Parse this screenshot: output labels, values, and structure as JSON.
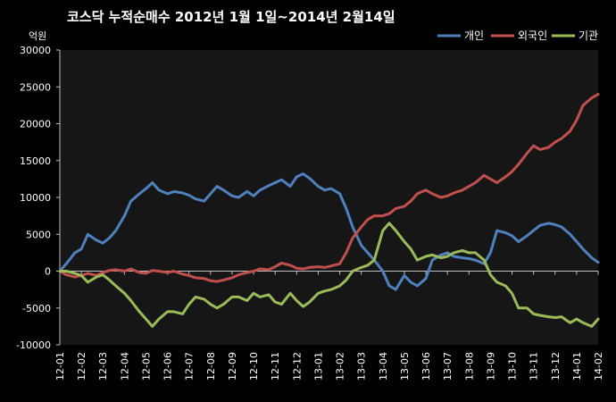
{
  "chart_data": {
    "type": "line",
    "title": "코스닥  누적순매수 2012년 1월 1일~2014년 2월14일",
    "unit": "억원",
    "ylim": [
      -10000,
      30000
    ],
    "yticks": [
      -10000,
      -5000,
      0,
      5000,
      10000,
      15000,
      20000,
      25000,
      30000
    ],
    "categories": [
      "12-01",
      "12-02",
      "12-03",
      "12-04",
      "12-05",
      "12-06",
      "12-07",
      "12-08",
      "12-09",
      "12-10",
      "12-11",
      "12-12",
      "13-01",
      "13-02",
      "13-03",
      "13-04",
      "13-05",
      "13-06",
      "13-07",
      "13-08",
      "13-09",
      "13-10",
      "13-11",
      "13-12",
      "14-01",
      "14-02"
    ],
    "grid": false,
    "legend_position": "top-right",
    "series": [
      {
        "name": "개인",
        "color": "#4f81bd",
        "points": [
          [
            0,
            0
          ],
          [
            0.3,
            1000
          ],
          [
            0.7,
            2500
          ],
          [
            1.0,
            3000
          ],
          [
            1.3,
            5000
          ],
          [
            1.7,
            4200
          ],
          [
            2.0,
            3800
          ],
          [
            2.3,
            4500
          ],
          [
            2.6,
            5500
          ],
          [
            3.0,
            7500
          ],
          [
            3.3,
            9500
          ],
          [
            3.7,
            10500
          ],
          [
            4.0,
            11200
          ],
          [
            4.3,
            12000
          ],
          [
            4.6,
            11000
          ],
          [
            5.0,
            10500
          ],
          [
            5.3,
            10800
          ],
          [
            5.7,
            10600
          ],
          [
            6.0,
            10300
          ],
          [
            6.3,
            9800
          ],
          [
            6.7,
            9500
          ],
          [
            7.0,
            10500
          ],
          [
            7.3,
            11500
          ],
          [
            7.6,
            11000
          ],
          [
            8.0,
            10200
          ],
          [
            8.3,
            10000
          ],
          [
            8.7,
            10800
          ],
          [
            9.0,
            10200
          ],
          [
            9.3,
            11000
          ],
          [
            9.7,
            11600
          ],
          [
            10.0,
            12000
          ],
          [
            10.3,
            12400
          ],
          [
            10.7,
            11500
          ],
          [
            11.0,
            12800
          ],
          [
            11.3,
            13200
          ],
          [
            11.6,
            12600
          ],
          [
            12.0,
            11500
          ],
          [
            12.3,
            11000
          ],
          [
            12.6,
            11200
          ],
          [
            13.0,
            10500
          ],
          [
            13.3,
            8500
          ],
          [
            13.6,
            6000
          ],
          [
            14.0,
            3500
          ],
          [
            14.3,
            2500
          ],
          [
            14.6,
            1500
          ],
          [
            15.0,
            0
          ],
          [
            15.3,
            -2000
          ],
          [
            15.6,
            -2500
          ],
          [
            16.0,
            -600
          ],
          [
            16.3,
            -1500
          ],
          [
            16.6,
            -2000
          ],
          [
            17.0,
            -1000
          ],
          [
            17.3,
            1500
          ],
          [
            17.7,
            2200
          ],
          [
            18.0,
            2500
          ],
          [
            18.3,
            2000
          ],
          [
            18.7,
            1800
          ],
          [
            19.0,
            1700
          ],
          [
            19.3,
            1500
          ],
          [
            19.7,
            1000
          ],
          [
            20.0,
            2500
          ],
          [
            20.3,
            5500
          ],
          [
            20.7,
            5200
          ],
          [
            21.0,
            4800
          ],
          [
            21.3,
            4000
          ],
          [
            21.7,
            4800
          ],
          [
            22.0,
            5500
          ],
          [
            22.3,
            6200
          ],
          [
            22.7,
            6500
          ],
          [
            23.0,
            6300
          ],
          [
            23.3,
            6000
          ],
          [
            23.7,
            5000
          ],
          [
            24.0,
            4000
          ],
          [
            24.3,
            3000
          ],
          [
            24.7,
            1800
          ],
          [
            25.0,
            1200
          ]
        ]
      },
      {
        "name": "외국인",
        "color": "#c0504d",
        "points": [
          [
            0,
            0
          ],
          [
            0.3,
            -500
          ],
          [
            0.7,
            -800
          ],
          [
            1.0,
            -600
          ],
          [
            1.3,
            -300
          ],
          [
            1.7,
            -600
          ],
          [
            2.0,
            -200
          ],
          [
            2.3,
            100
          ],
          [
            2.6,
            200
          ],
          [
            3.0,
            0
          ],
          [
            3.3,
            300
          ],
          [
            3.7,
            -200
          ],
          [
            4.0,
            -300
          ],
          [
            4.3,
            100
          ],
          [
            4.6,
            0
          ],
          [
            5.0,
            -200
          ],
          [
            5.3,
            0
          ],
          [
            5.7,
            -400
          ],
          [
            6.0,
            -600
          ],
          [
            6.3,
            -900
          ],
          [
            6.7,
            -1000
          ],
          [
            7.0,
            -1300
          ],
          [
            7.3,
            -1400
          ],
          [
            7.6,
            -1200
          ],
          [
            8.0,
            -900
          ],
          [
            8.3,
            -500
          ],
          [
            8.7,
            -200
          ],
          [
            9.0,
            0
          ],
          [
            9.3,
            300
          ],
          [
            9.7,
            200
          ],
          [
            10.0,
            600
          ],
          [
            10.3,
            1100
          ],
          [
            10.7,
            800
          ],
          [
            11.0,
            400
          ],
          [
            11.3,
            300
          ],
          [
            11.6,
            500
          ],
          [
            12.0,
            600
          ],
          [
            12.3,
            500
          ],
          [
            12.6,
            700
          ],
          [
            13.0,
            1000
          ],
          [
            13.3,
            2500
          ],
          [
            13.6,
            4500
          ],
          [
            14.0,
            6000
          ],
          [
            14.3,
            7000
          ],
          [
            14.6,
            7500
          ],
          [
            15.0,
            7500
          ],
          [
            15.3,
            7800
          ],
          [
            15.6,
            8500
          ],
          [
            16.0,
            8800
          ],
          [
            16.3,
            9500
          ],
          [
            16.6,
            10500
          ],
          [
            17.0,
            11000
          ],
          [
            17.3,
            10500
          ],
          [
            17.7,
            10000
          ],
          [
            18.0,
            10200
          ],
          [
            18.3,
            10600
          ],
          [
            18.7,
            11000
          ],
          [
            19.0,
            11500
          ],
          [
            19.3,
            12000
          ],
          [
            19.7,
            13000
          ],
          [
            20.0,
            12500
          ],
          [
            20.3,
            12000
          ],
          [
            20.7,
            12800
          ],
          [
            21.0,
            13500
          ],
          [
            21.3,
            14500
          ],
          [
            21.7,
            16000
          ],
          [
            22.0,
            17000
          ],
          [
            22.3,
            16500
          ],
          [
            22.7,
            16800
          ],
          [
            23.0,
            17500
          ],
          [
            23.3,
            18000
          ],
          [
            23.7,
            19000
          ],
          [
            24.0,
            20500
          ],
          [
            24.3,
            22500
          ],
          [
            24.7,
            23500
          ],
          [
            25.0,
            24000
          ]
        ]
      },
      {
        "name": "기관",
        "color": "#9bbb59",
        "points": [
          [
            0,
            0
          ],
          [
            0.3,
            0
          ],
          [
            0.7,
            -300
          ],
          [
            1.0,
            -600
          ],
          [
            1.3,
            -1500
          ],
          [
            1.7,
            -800
          ],
          [
            2.0,
            -500
          ],
          [
            2.3,
            -1200
          ],
          [
            2.6,
            -2000
          ],
          [
            3.0,
            -3000
          ],
          [
            3.3,
            -4000
          ],
          [
            3.7,
            -5500
          ],
          [
            4.0,
            -6500
          ],
          [
            4.3,
            -7500
          ],
          [
            4.6,
            -6500
          ],
          [
            5.0,
            -5500
          ],
          [
            5.3,
            -5500
          ],
          [
            5.7,
            -5800
          ],
          [
            6.0,
            -4500
          ],
          [
            6.3,
            -3500
          ],
          [
            6.7,
            -3800
          ],
          [
            7.0,
            -4500
          ],
          [
            7.3,
            -5000
          ],
          [
            7.6,
            -4500
          ],
          [
            8.0,
            -3500
          ],
          [
            8.3,
            -3500
          ],
          [
            8.7,
            -4000
          ],
          [
            9.0,
            -3000
          ],
          [
            9.3,
            -3500
          ],
          [
            9.7,
            -3200
          ],
          [
            10.0,
            -4200
          ],
          [
            10.3,
            -4500
          ],
          [
            10.7,
            -3000
          ],
          [
            11.0,
            -4000
          ],
          [
            11.3,
            -4800
          ],
          [
            11.6,
            -4200
          ],
          [
            12.0,
            -3000
          ],
          [
            12.3,
            -2700
          ],
          [
            12.6,
            -2500
          ],
          [
            13.0,
            -2000
          ],
          [
            13.3,
            -1200
          ],
          [
            13.6,
            0
          ],
          [
            14.0,
            500
          ],
          [
            14.3,
            800
          ],
          [
            14.6,
            1500
          ],
          [
            15.0,
            5500
          ],
          [
            15.3,
            6500
          ],
          [
            15.6,
            5500
          ],
          [
            16.0,
            4000
          ],
          [
            16.3,
            3000
          ],
          [
            16.6,
            1500
          ],
          [
            17.0,
            2000
          ],
          [
            17.3,
            2200
          ],
          [
            17.7,
            1800
          ],
          [
            18.0,
            2000
          ],
          [
            18.3,
            2500
          ],
          [
            18.7,
            2800
          ],
          [
            19.0,
            2500
          ],
          [
            19.3,
            2500
          ],
          [
            19.7,
            1500
          ],
          [
            20.0,
            -500
          ],
          [
            20.3,
            -1500
          ],
          [
            20.7,
            -2000
          ],
          [
            21.0,
            -3000
          ],
          [
            21.3,
            -5000
          ],
          [
            21.7,
            -5000
          ],
          [
            22.0,
            -5800
          ],
          [
            22.3,
            -6000
          ],
          [
            22.7,
            -6200
          ],
          [
            23.0,
            -6300
          ],
          [
            23.3,
            -6200
          ],
          [
            23.7,
            -7000
          ],
          [
            24.0,
            -6500
          ],
          [
            24.3,
            -7000
          ],
          [
            24.7,
            -7500
          ],
          [
            25.0,
            -6500
          ]
        ]
      }
    ]
  }
}
